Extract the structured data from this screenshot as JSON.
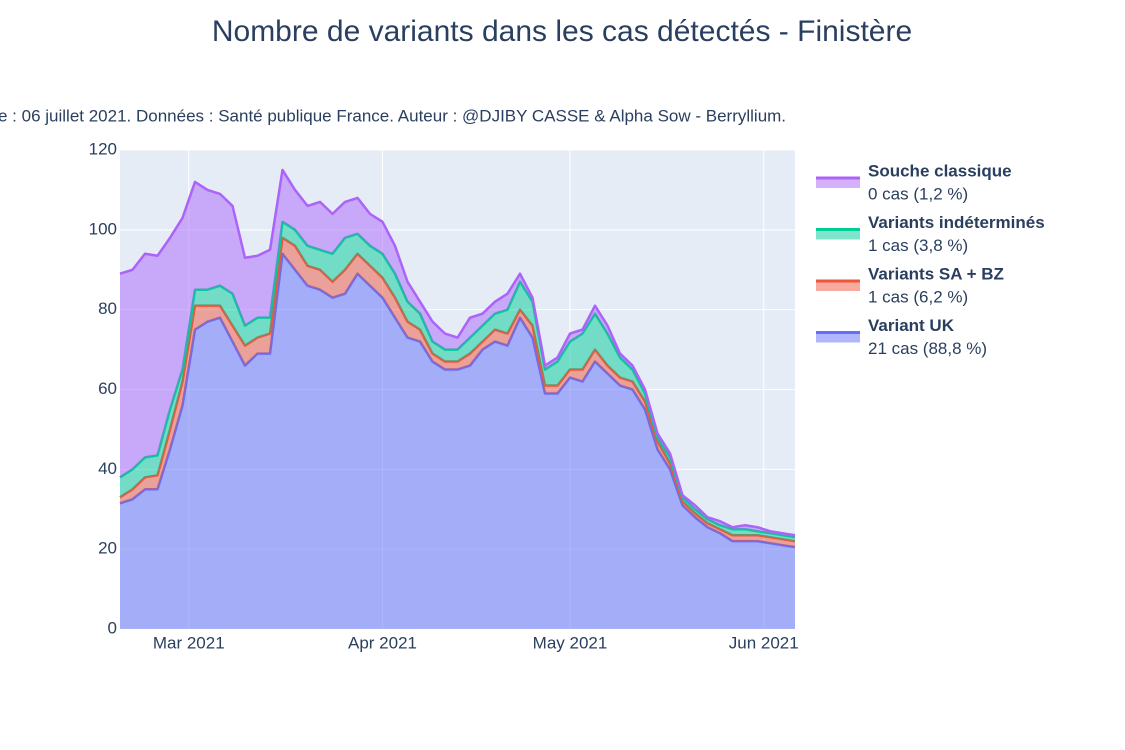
{
  "chart_data": {
    "type": "stacked-area",
    "title": "Nombre de variants dans les cas détectés - Finistère",
    "subtitle": "e : 06 juillet 2021. Données : Santé publique France. Auteur : @DJIBY CASSE & Alpha Sow - Berryllium.",
    "x": [
      "2021-02-18",
      "2021-02-20",
      "2021-02-22",
      "2021-02-24",
      "2021-02-26",
      "2021-02-28",
      "2021-03-02",
      "2021-03-04",
      "2021-03-06",
      "2021-03-08",
      "2021-03-10",
      "2021-03-12",
      "2021-03-14",
      "2021-03-16",
      "2021-03-18",
      "2021-03-20",
      "2021-03-22",
      "2021-03-24",
      "2021-03-26",
      "2021-03-28",
      "2021-03-30",
      "2021-04-01",
      "2021-04-03",
      "2021-04-05",
      "2021-04-07",
      "2021-04-09",
      "2021-04-11",
      "2021-04-13",
      "2021-04-15",
      "2021-04-17",
      "2021-04-19",
      "2021-04-21",
      "2021-04-23",
      "2021-04-25",
      "2021-04-27",
      "2021-04-29",
      "2021-05-01",
      "2021-05-03",
      "2021-05-05",
      "2021-05-07",
      "2021-05-09",
      "2021-05-11",
      "2021-05-13",
      "2021-05-15",
      "2021-05-17",
      "2021-05-19",
      "2021-05-21",
      "2021-05-23",
      "2021-05-25",
      "2021-05-27",
      "2021-05-29",
      "2021-05-31",
      "2021-06-02",
      "2021-06-04",
      "2021-06-06"
    ],
    "series": [
      {
        "name": "Variant UK",
        "detail": "21 cas (88,8 %)",
        "color": "#636efa",
        "values": [
          31.5,
          32.5,
          35,
          35,
          45,
          56,
          75,
          77,
          78,
          72,
          66,
          69,
          69,
          94,
          90,
          86,
          85,
          83,
          84,
          89,
          86,
          83,
          78,
          73,
          72,
          67,
          65,
          65,
          66,
          70,
          72,
          71,
          78,
          73,
          59,
          59,
          63,
          62,
          67,
          64,
          61,
          60,
          55,
          45,
          40,
          31,
          28,
          25.5,
          24,
          22,
          22,
          22,
          21.5,
          21,
          20.5
        ]
      },
      {
        "name": "Variants SA + BZ",
        "detail": "1 cas (6,2 %)",
        "color": "#ef553b",
        "values": [
          1.5,
          2.5,
          3,
          3.5,
          5,
          6,
          6,
          4,
          3,
          4,
          5,
          4,
          5,
          4,
          6,
          5,
          5,
          4,
          6,
          5,
          5,
          5,
          5,
          4,
          3,
          2,
          2,
          2,
          3,
          2,
          3,
          3,
          2,
          3,
          2,
          2,
          2,
          3,
          3,
          2,
          2,
          2,
          2,
          2,
          1.5,
          1,
          1,
          1,
          1,
          1.5,
          1.5,
          1.5,
          1.5,
          1.5,
          1.5
        ]
      },
      {
        "name": "Variants indéterminés",
        "detail": "1 cas (3,8 %)",
        "color": "#00cc96",
        "values": [
          5,
          5,
          5,
          5,
          5,
          3,
          4,
          4,
          5,
          8,
          5,
          5,
          4,
          4,
          4,
          5,
          5,
          7,
          8,
          5,
          5,
          6,
          6,
          5,
          4,
          3,
          3,
          3,
          4,
          4,
          4,
          6,
          7,
          6,
          4,
          6,
          7,
          9,
          9,
          8,
          5,
          3,
          2,
          1,
          1.5,
          1,
          1,
          1,
          1,
          1.5,
          1.5,
          1,
          1,
          1,
          1
        ]
      },
      {
        "name": "Souche classique",
        "detail": "0 cas (1,2 %)",
        "color": "#ab63fa",
        "values": [
          51,
          50,
          51,
          50,
          43,
          38,
          27,
          25,
          23,
          22,
          17,
          15.5,
          17,
          13,
          10,
          10,
          12,
          10,
          9,
          9,
          8,
          8,
          7,
          5,
          3,
          5,
          4,
          3,
          5,
          3,
          3,
          4,
          2,
          1,
          1,
          1,
          2,
          1,
          2,
          2,
          1,
          1,
          1,
          1,
          1,
          0.5,
          1,
          0.5,
          1,
          0.5,
          1,
          1,
          0.5,
          0.5,
          0.5
        ]
      }
    ],
    "xlim": [
      "2021-02-18",
      "2021-06-06"
    ],
    "xticks": [
      {
        "value": "2021-03-01",
        "label": "Mar 2021"
      },
      {
        "value": "2021-04-01",
        "label": "Apr 2021"
      },
      {
        "value": "2021-05-01",
        "label": "May 2021"
      },
      {
        "value": "2021-06-01",
        "label": "Jun 2021"
      }
    ],
    "ylim": [
      0,
      120
    ],
    "yticks": [
      0,
      20,
      40,
      60,
      80,
      100,
      120
    ],
    "grid": true
  }
}
